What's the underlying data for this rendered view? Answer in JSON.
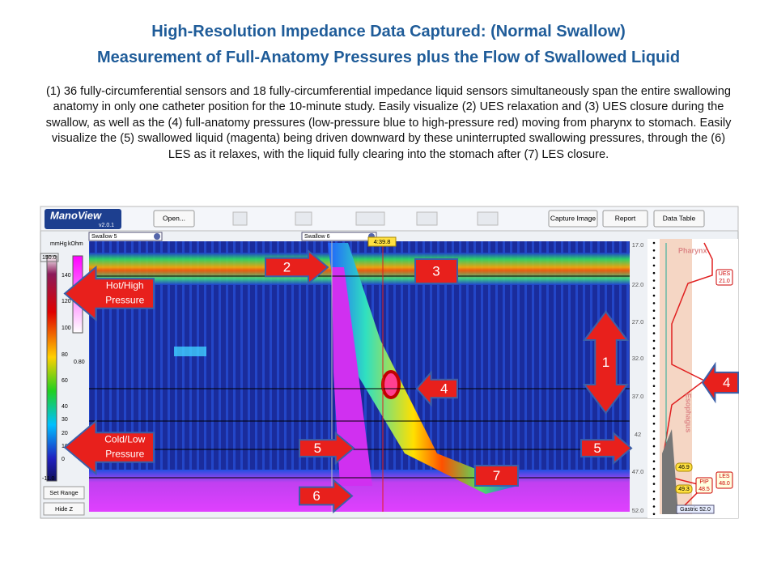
{
  "header": {
    "title": "High-Resolution Impedance Data Captured: (Normal Swallow)",
    "subtitle": "Measurement of Full-Anatomy Pressures plus the Flow of Swallowed Liquid",
    "description": "(1) 36 fully-circumferential sensors and 18 fully-circumferential impedance liquid sensors simultaneously span the entire swallowing anatomy in only one catheter position for the 10-minute study.  Easily visualize (2) UES relaxation and (3) UES closure during the swallow, as well as the (4) full-anatomy pressures (low-pressure blue to high-pressure red) moving from pharynx to stomach. Easily visualize the (5) swallowed liquid (magenta) being driven downward by these uninterrupted swallowing pressures, through the (6) LES as it relaxes, with the liquid fully clearing into the stomach after (7) LES closure."
  },
  "toolbar": {
    "logo": "ManoView",
    "version": "v2.0.1",
    "buttons": [
      "Open...",
      "Capture Image",
      "Report",
      "Data Table"
    ]
  },
  "left_panel": {
    "units": [
      "mmHg",
      "kOhm"
    ],
    "scale": [
      "150.0",
      "140",
      "120",
      "100",
      "80",
      "60",
      "40",
      "30",
      "20",
      "10",
      "0",
      "-11.0"
    ],
    "impedance_min": "0.80",
    "buttons": [
      "Set Range",
      "Hide Z"
    ]
  },
  "tabs": [
    "Swallow 5",
    "Swallow 6"
  ],
  "time_marker": "4:39.8",
  "depth_ticks": [
    "17.0",
    "22.0",
    "27.0",
    "32.0",
    "37.0",
    "42",
    "47.0",
    "52.0"
  ],
  "profile": {
    "regions": [
      "Pharynx",
      "Esophagus"
    ],
    "ues": [
      "UES",
      "21.0"
    ],
    "les": [
      "LES",
      "48.0"
    ],
    "pip": [
      "PIP",
      "48.5"
    ],
    "marks": [
      "46.9",
      "49.3"
    ],
    "gastric": "Gastric 52.0"
  },
  "callouts": [
    "Hot/High Pressure",
    "Cold/Low Pressure",
    "2",
    "3",
    "1",
    "4",
    "4",
    "5",
    "5",
    "7",
    "6"
  ]
}
